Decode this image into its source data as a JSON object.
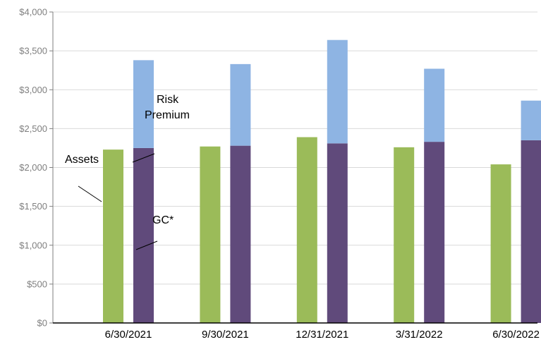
{
  "chart_data": {
    "type": "bar",
    "stacked_groups": true,
    "title": "",
    "xlabel": "",
    "ylabel": "",
    "ylim": [
      0,
      4000
    ],
    "yticks": [
      "$0",
      "$500",
      "$1,000",
      "$1,500",
      "$2,000",
      "$2,500",
      "$3,000",
      "$3,500",
      "$4,000"
    ],
    "categories": [
      "6/30/2021",
      "9/30/2021",
      "12/31/2021",
      "3/31/2022",
      "6/30/2022"
    ],
    "grid": true,
    "legend": "none",
    "series": [
      {
        "name": "Assets",
        "stack": "a",
        "color": "#9bbb59",
        "values": [
          2230,
          2270,
          2390,
          2260,
          2040
        ]
      },
      {
        "name": "GC*",
        "stack": "b",
        "color": "#604a7b",
        "values": [
          2250,
          2280,
          2310,
          2330,
          2350
        ]
      },
      {
        "name": "Risk Premium",
        "stack": "b",
        "color": "#8eb4e3",
        "values": [
          1130,
          1050,
          1330,
          940,
          510
        ]
      }
    ],
    "annotations": {
      "assets": "Assets",
      "risk_premium_line1": "Risk",
      "risk_premium_line2": "Premium",
      "gc": "GC*"
    }
  }
}
